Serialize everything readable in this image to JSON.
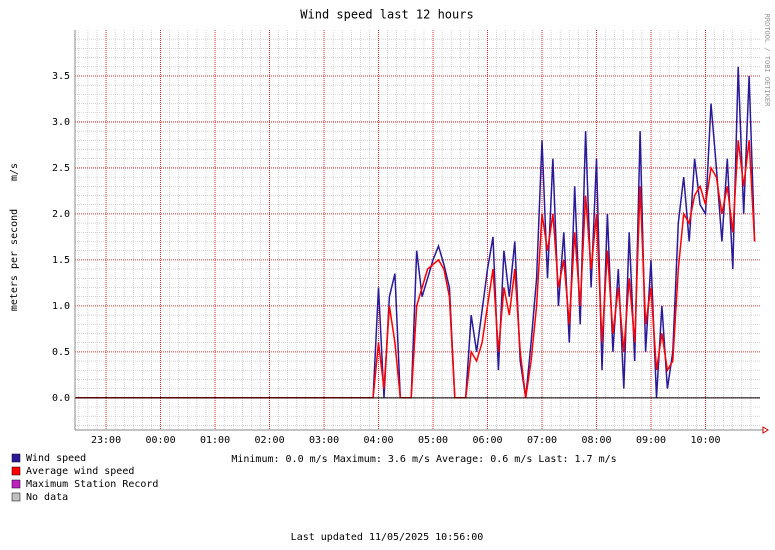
{
  "chart_data": {
    "type": "line",
    "title": "Wind speed last 12 hours",
    "y_label": "meters per second",
    "y_unit": "m/s",
    "watermark": "RRDTOOL / TOBI OETIKER",
    "x": [
      22.43,
      27.9,
      28.0,
      28.1,
      28.2,
      28.3,
      28.4,
      28.5,
      28.6,
      28.7,
      28.8,
      28.9,
      29.0,
      29.1,
      29.2,
      29.3,
      29.4,
      29.5,
      29.6,
      29.7,
      29.8,
      29.9,
      30.0,
      30.1,
      30.2,
      30.3,
      30.4,
      30.5,
      30.6,
      30.7,
      30.8,
      30.9,
      31.0,
      31.1,
      31.2,
      31.3,
      31.4,
      31.5,
      31.6,
      31.7,
      31.8,
      31.9,
      32.0,
      32.1,
      32.2,
      32.3,
      32.4,
      32.5,
      32.6,
      32.7,
      32.8,
      32.9,
      33.0,
      33.1,
      33.2,
      33.3,
      33.4,
      33.5,
      33.6,
      33.7,
      33.8,
      33.9,
      34.0,
      34.1,
      34.2,
      34.3,
      34.4,
      34.5,
      34.6,
      34.7,
      34.8,
      34.9
    ],
    "series": [
      {
        "name": "Wind speed",
        "color": "#2a1a9a",
        "values": [
          0,
          0,
          1.2,
          0,
          1.1,
          1.35,
          0,
          0,
          0,
          1.6,
          1.1,
          1.3,
          1.5,
          1.65,
          1.45,
          1.2,
          0,
          0,
          0,
          0.9,
          0.5,
          0.95,
          1.4,
          1.75,
          0.3,
          1.6,
          1.1,
          1.7,
          0.4,
          0,
          0.6,
          1.3,
          2.8,
          1.3,
          2.6,
          1.0,
          1.8,
          0.6,
          2.3,
          0.8,
          2.9,
          1.2,
          2.6,
          0.3,
          2.0,
          0.5,
          1.4,
          0.1,
          1.8,
          0.4,
          2.9,
          0.5,
          1.5,
          0,
          1.0,
          0.1,
          0.5,
          1.9,
          2.4,
          1.7,
          2.6,
          2.1,
          2.0,
          3.2,
          2.5,
          1.7,
          2.6,
          1.4,
          3.6,
          2.0,
          3.5,
          1.7
        ]
      },
      {
        "name": "Average wind speed",
        "color": "#ff0000",
        "values": [
          0,
          0,
          0.6,
          0.1,
          1.0,
          0.6,
          0,
          0,
          0,
          1.0,
          1.2,
          1.4,
          1.45,
          1.5,
          1.4,
          1.1,
          0,
          0,
          0,
          0.5,
          0.4,
          0.6,
          1.0,
          1.4,
          0.5,
          1.2,
          0.9,
          1.4,
          0.5,
          0,
          0.4,
          1.0,
          2.0,
          1.6,
          2.0,
          1.2,
          1.5,
          0.8,
          1.8,
          1.0,
          2.2,
          1.4,
          2.0,
          0.6,
          1.6,
          0.7,
          1.2,
          0.5,
          1.3,
          0.6,
          2.3,
          0.8,
          1.2,
          0.3,
          0.7,
          0.3,
          0.4,
          1.4,
          2.0,
          1.9,
          2.2,
          2.3,
          2.1,
          2.5,
          2.4,
          2.0,
          2.3,
          1.8,
          2.8,
          2.3,
          2.8,
          1.7
        ]
      }
    ],
    "legend_only": [
      {
        "name": "Maximum Station Record",
        "color": "#c020c0"
      },
      {
        "name": "No data",
        "color": "#c0c0c0"
      }
    ],
    "legend": "bottom-left",
    "stats": "Minimum: 0.0 m/s  Maximum: 3.6 m/s  Average: 0.6 m/s  Last: 1.7 m/s",
    "footer": "Last updated 11/05/2025 10:56:00",
    "xlim": [
      22.43,
      35.0
    ],
    "xticks": [
      {
        "value": 23,
        "label": "23:00"
      },
      {
        "value": 24,
        "label": "00:00"
      },
      {
        "value": 25,
        "label": "01:00"
      },
      {
        "value": 26,
        "label": "02:00"
      },
      {
        "value": 27,
        "label": "03:00"
      },
      {
        "value": 28,
        "label": "04:00"
      },
      {
        "value": 29,
        "label": "05:00"
      },
      {
        "value": 30,
        "label": "06:00"
      },
      {
        "value": 31,
        "label": "07:00"
      },
      {
        "value": 32,
        "label": "08:00"
      },
      {
        "value": 33,
        "label": "09:00"
      },
      {
        "value": 34,
        "label": "10:00"
      }
    ],
    "ylim": [
      -0.35,
      4.0
    ],
    "yticks": [
      {
        "value": 0,
        "label": "0.0"
      },
      {
        "value": 0.5,
        "label": "0.5"
      },
      {
        "value": 1,
        "label": "1.0"
      },
      {
        "value": 1.5,
        "label": "1.5"
      },
      {
        "value": 2,
        "label": "2.0"
      },
      {
        "value": 2.5,
        "label": "2.5"
      },
      {
        "value": 3,
        "label": "3.0"
      },
      {
        "value": 3.5,
        "label": "3.5"
      }
    ],
    "grid": true
  }
}
